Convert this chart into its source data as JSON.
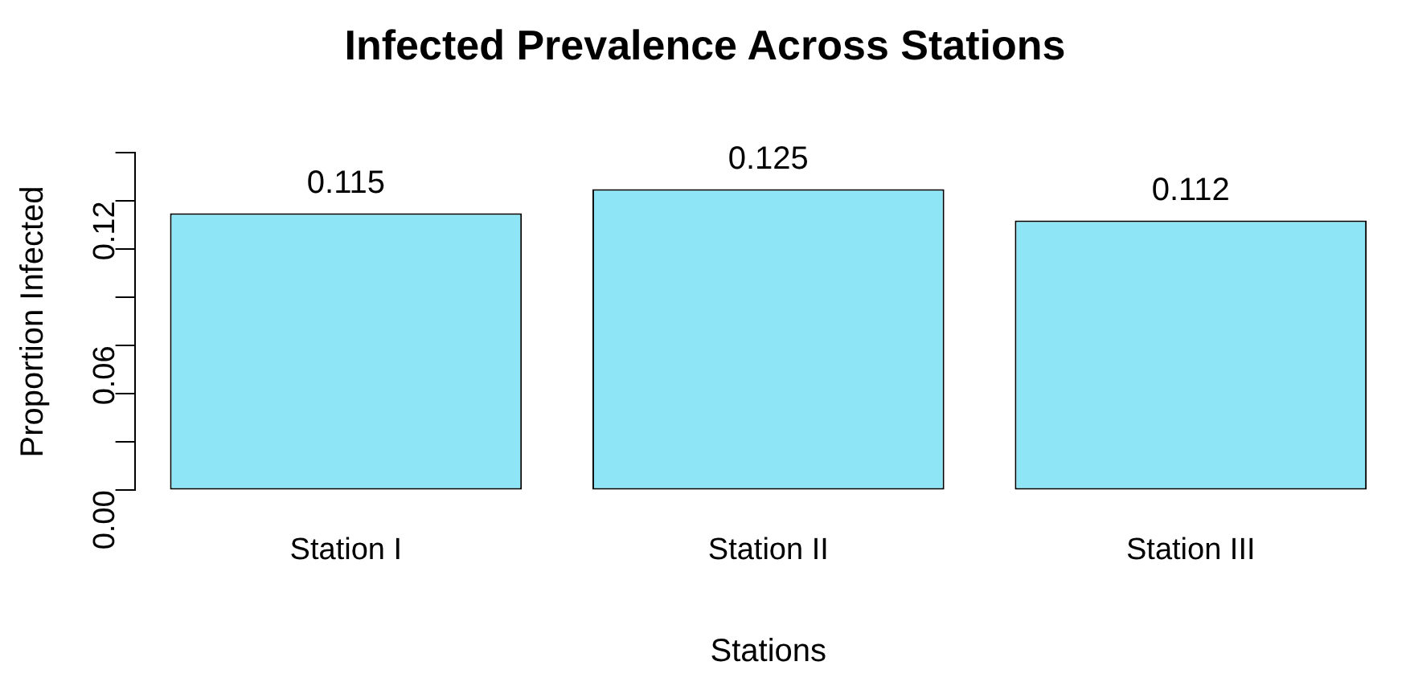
{
  "chart_data": {
    "type": "bar",
    "title": "Infected Prevalence Across Stations",
    "xlabel": "Stations",
    "ylabel": "Proportion Infected",
    "categories": [
      "Station I",
      "Station II",
      "Station III"
    ],
    "values": [
      0.115,
      0.125,
      0.112
    ],
    "color": "#8ee5f5",
    "data_labels": true,
    "grid": false,
    "legend": false,
    "ylim": [
      0,
      0.14
    ],
    "yticks": [
      {
        "value": 0,
        "label": "0.00"
      },
      {
        "value": 0.02,
        "label": null
      },
      {
        "value": 0.04,
        "label": null
      },
      {
        "value": 0.06,
        "label": "0.06"
      },
      {
        "value": 0.08,
        "label": null
      },
      {
        "value": 0.1,
        "label": null
      },
      {
        "value": 0.12,
        "label": "0.12"
      },
      {
        "value": 0.14,
        "label": null
      }
    ]
  }
}
